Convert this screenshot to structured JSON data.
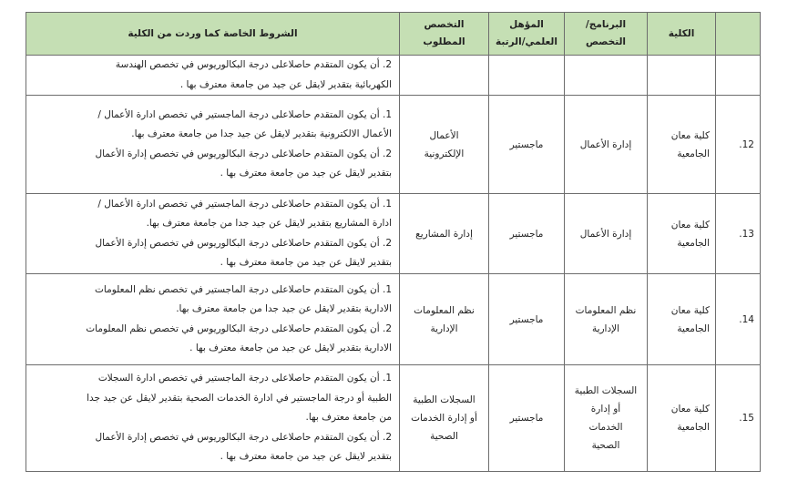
{
  "header": {
    "number": "",
    "college": "الكلية",
    "program": [
      "البرنامج/",
      "التخصص"
    ],
    "qualification": [
      "المؤهل",
      "العلمي/الرتبة"
    ],
    "specialization": [
      "التخصص",
      "المطلوب"
    ],
    "conditions": "الشروط الخاصة كما وردت من الكلية"
  },
  "rows": [
    {
      "number": "",
      "college": [],
      "program": [],
      "qualification": "",
      "specialization": [],
      "conditions": [
        "2. أن يكون المتقدم حاصلاعلى درجة البكالوريوس في  تخصص الهندسة",
        "الكهربائية بتقدير لايقل عن جيد من جامعة معترف بها ."
      ]
    },
    {
      "number": "12.",
      "college": [
        "كلية معان",
        "الجامعية"
      ],
      "program": [
        "إدارة الأعمال"
      ],
      "qualification": "ماجستير",
      "specialization": [
        "الأعمال",
        "الإلكترونية"
      ],
      "conditions": [
        "1.  أن يكون المتقدم حاصلاعلى درجة الماجستير  في تخصص ادارة الأعمال /",
        "الأعمال الالكترونية بتقدير لايقل عن جيد جدا من جامعة معترف بها.",
        "2. أن يكون المتقدم حاصلاعلى درجة البكالوريوس في  تخصص إدارة الأعمال",
        "بتقدير لايقل عن جيد من جامعة معترف بها ."
      ]
    },
    {
      "number": "13.",
      "college": [
        "كلية معان",
        "الجامعية"
      ],
      "program": [
        "إدارة الأعمال"
      ],
      "qualification": "ماجستير",
      "specialization": [
        "إدارة المشاريع"
      ],
      "conditions": [
        "1.  أن يكون المتقدم حاصلاعلى درجة الماجستير  في تخصص ادارة الأعمال /",
        "ادارة المشاريع  بتقدير لايقل عن جيد جدا من جامعة معترف بها.",
        "2. أن يكون المتقدم حاصلاعلى درجة البكالوريوس في  تخصص إدارة الأعمال",
        "بتقدير لايقل عن جيد من جامعة معترف بها ."
      ]
    },
    {
      "number": "14.",
      "college": [
        "كلية معان",
        "الجامعية"
      ],
      "program": [
        "نظم المعلومات",
        "الإدارية"
      ],
      "qualification": "ماجستير",
      "specialization": [
        "نظم المعلومات",
        "الإدارية"
      ],
      "conditions": [
        "1.  أن يكون المتقدم حاصلاعلى درجة الماجستير  في  تخصص نظم المعلومات",
        "الادارية بتقدير لايقل عن جيد جدا من جامعة معترف بها.",
        "2. أن يكون المتقدم حاصلاعلى درجة البكالوريوس في تخصص نظم المعلومات",
        "الادارية  بتقدير لايقل عن جيد من جامعة معترف بها ."
      ]
    },
    {
      "number": "15.",
      "college": [
        "كلية معان",
        "الجامعية"
      ],
      "program": [
        "السجلات الطبية",
        "أو إدارة",
        "الخدمات",
        "الصحية"
      ],
      "qualification": "ماجستير",
      "specialization": [
        "السجلات الطبية",
        "أو إدارة الخدمات",
        "الصحية"
      ],
      "conditions": [
        "1.  أن يكون المتقدم حاصلاعلى درجة الماجستير  في تخصص ادارة السجلات",
        "الطبية أو درجة الماجستير في ادارة الخدمات الصحية بتقدير لايقل عن جيد جدا",
        "من جامعة معترف بها.",
        "2. أن يكون المتقدم حاصلاعلى درجة البكالوريوس في  تخصص إدارة الأعمال",
        "بتقدير لايقل عن جيد من جامعة معترف بها ."
      ]
    }
  ]
}
